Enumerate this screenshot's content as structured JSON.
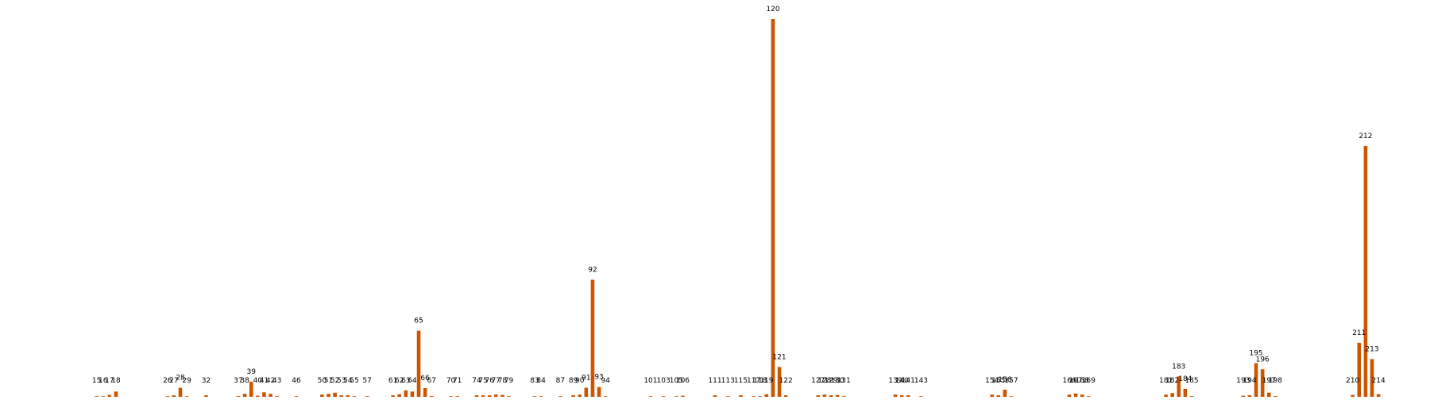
{
  "chart_data": {
    "type": "bar",
    "title": "",
    "xlabel": "",
    "ylabel": "",
    "bar_color": "#cc5500",
    "xlim": [
      0,
      222
    ],
    "ylim": [
      0,
      100
    ],
    "grid": false,
    "axes_visible": false,
    "x": [
      15,
      16,
      17,
      18,
      26,
      27,
      28,
      29,
      32,
      37,
      38,
      39,
      40,
      41,
      42,
      43,
      46,
      50,
      51,
      52,
      53,
      54,
      55,
      57,
      61,
      62,
      63,
      64,
      65,
      66,
      67,
      70,
      71,
      74,
      75,
      76,
      77,
      78,
      79,
      83,
      84,
      87,
      89,
      90,
      91,
      92,
      93,
      94,
      101,
      103,
      105,
      106,
      111,
      113,
      115,
      117,
      118,
      119,
      120,
      121,
      122,
      127,
      128,
      129,
      130,
      131,
      139,
      140,
      141,
      143,
      154,
      155,
      156,
      157,
      166,
      167,
      168,
      169,
      181,
      182,
      183,
      184,
      185,
      193,
      194,
      195,
      196,
      197,
      198,
      210,
      211,
      212,
      213,
      214
    ],
    "values": [
      0.1,
      0.1,
      0.5,
      1.4,
      0.1,
      0.4,
      2.4,
      0.1,
      0.4,
      0.2,
      0.8,
      4.0,
      0.3,
      1.2,
      0.8,
      0.1,
      0.1,
      0.6,
      0.8,
      1.1,
      0.4,
      0.4,
      0.1,
      0.1,
      0.4,
      0.7,
      1.7,
      1.4,
      17.5,
      2.3,
      0.2,
      0.1,
      0.1,
      0.4,
      0.4,
      0.4,
      0.6,
      0.5,
      0.1,
      0.1,
      0.1,
      0.1,
      0.4,
      0.6,
      2.4,
      31.0,
      2.6,
      0.1,
      0.1,
      0.1,
      0.1,
      0.3,
      0.4,
      0.1,
      0.4,
      0.1,
      0.1,
      0.7,
      100.0,
      7.9,
      0.4,
      0.4,
      0.6,
      0.4,
      0.5,
      0.1,
      0.6,
      0.4,
      0.4,
      0.1,
      0.6,
      0.4,
      1.9,
      0.1,
      0.6,
      0.9,
      0.6,
      0.1,
      0.6,
      1.0,
      5.4,
      2.1,
      0.2,
      0.3,
      0.4,
      8.9,
      7.3,
      1.1,
      0.2,
      0.5,
      14.3,
      66.4,
      10.0,
      0.7
    ],
    "labels": [
      "15",
      "16",
      "17",
      "18",
      "26",
      "27",
      "28",
      "29",
      "32",
      "37",
      "38",
      "39",
      "40",
      "41",
      "42",
      "43",
      "46",
      "50",
      "51",
      "52",
      "53",
      "54",
      "55",
      "57",
      "61",
      "62",
      "63",
      "64",
      "65",
      "66",
      "67",
      "70",
      "71",
      "74",
      "75",
      "76",
      "77",
      "78",
      "79",
      "83",
      "84",
      "87",
      "89",
      "90",
      "91",
      "92",
      "93",
      "94",
      "101",
      "103",
      "105",
      "106",
      "111",
      "113",
      "115",
      "117",
      "118",
      "119",
      "120",
      "121",
      "122",
      "127",
      "128",
      "129",
      "130",
      "131",
      "139",
      "140",
      "141",
      "143",
      "154",
      "155",
      "156",
      "157",
      "166",
      "167",
      "168",
      "169",
      "181",
      "182",
      "183",
      "184",
      "185",
      "193",
      "194",
      "195",
      "196",
      "197",
      "198",
      "210",
      "211",
      "212",
      "213",
      "214"
    ]
  }
}
